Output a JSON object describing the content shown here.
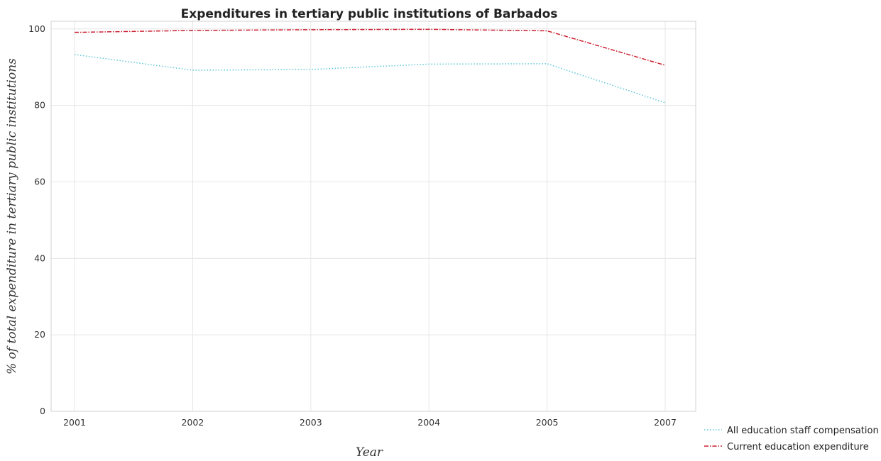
{
  "chart_data": {
    "type": "line",
    "title": "Expenditures in tertiary public institutions of Barbados",
    "xlabel": "Year",
    "ylabel": "% of total expenditure in tertiary public institutions",
    "categories": [
      "2001",
      "2002",
      "2003",
      "2004",
      "2005",
      "2007"
    ],
    "ylim": [
      0,
      102
    ],
    "yticks": [
      0,
      20,
      40,
      60,
      80,
      100
    ],
    "grid": true,
    "legend_position": "bottom-right",
    "series": [
      {
        "name": "All education staff compensation",
        "color": "#5bc8d6",
        "dash": "dotted",
        "values": [
          93.3,
          89.2,
          89.4,
          90.8,
          90.9,
          80.7
        ]
      },
      {
        "name": "Current education expenditure",
        "color": "#cc1f2f",
        "dash": "dashdot",
        "values": [
          99.1,
          99.6,
          99.8,
          99.9,
          99.5,
          90.5
        ]
      }
    ]
  }
}
